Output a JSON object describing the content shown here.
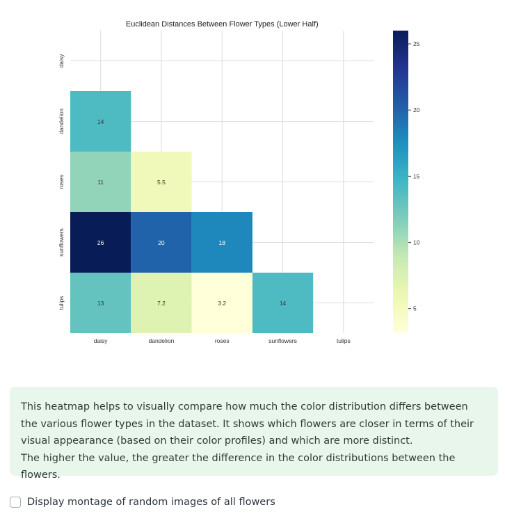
{
  "chart_data": {
    "type": "heatmap",
    "title": "Euclidean Distances Between Flower Types (Lower Half)",
    "x_labels": [
      "daisy",
      "dandelion",
      "roses",
      "sunflowers",
      "tulips"
    ],
    "y_labels": [
      "daisy",
      "dandelion",
      "roses",
      "sunflowers",
      "tulips"
    ],
    "cells": [
      {
        "row": "dandelion",
        "col": "daisy",
        "value": 14,
        "label": "14"
      },
      {
        "row": "roses",
        "col": "daisy",
        "value": 11,
        "label": "11"
      },
      {
        "row": "roses",
        "col": "dandelion",
        "value": 5.5,
        "label": "5.5"
      },
      {
        "row": "sunflowers",
        "col": "daisy",
        "value": 26,
        "label": "26"
      },
      {
        "row": "sunflowers",
        "col": "dandelion",
        "value": 20,
        "label": "20"
      },
      {
        "row": "sunflowers",
        "col": "roses",
        "value": 18,
        "label": "18"
      },
      {
        "row": "tulips",
        "col": "daisy",
        "value": 13,
        "label": "13"
      },
      {
        "row": "tulips",
        "col": "dandelion",
        "value": 7.2,
        "label": "7.2"
      },
      {
        "row": "tulips",
        "col": "roses",
        "value": 3.2,
        "label": "3.2"
      },
      {
        "row": "tulips",
        "col": "sunflowers",
        "value": 14,
        "label": "14"
      }
    ],
    "colormap": "YlGnBu",
    "color_range": [
      3.2,
      26
    ],
    "colorbar_ticks": [
      5,
      10,
      15,
      20,
      25
    ],
    "grid": true
  },
  "info": {
    "line1": "This heatmap helps to visually compare how much the color distribution differs between the various flower types in the dataset. It shows which flowers are closer in terms of their visual appearance (based on their color profiles) and which are more distinct.",
    "line2": "The higher the value, the greater the difference in the color distributions between the flowers."
  },
  "checkbox": {
    "label": "Display montage of random images of all flowers",
    "checked": false
  }
}
